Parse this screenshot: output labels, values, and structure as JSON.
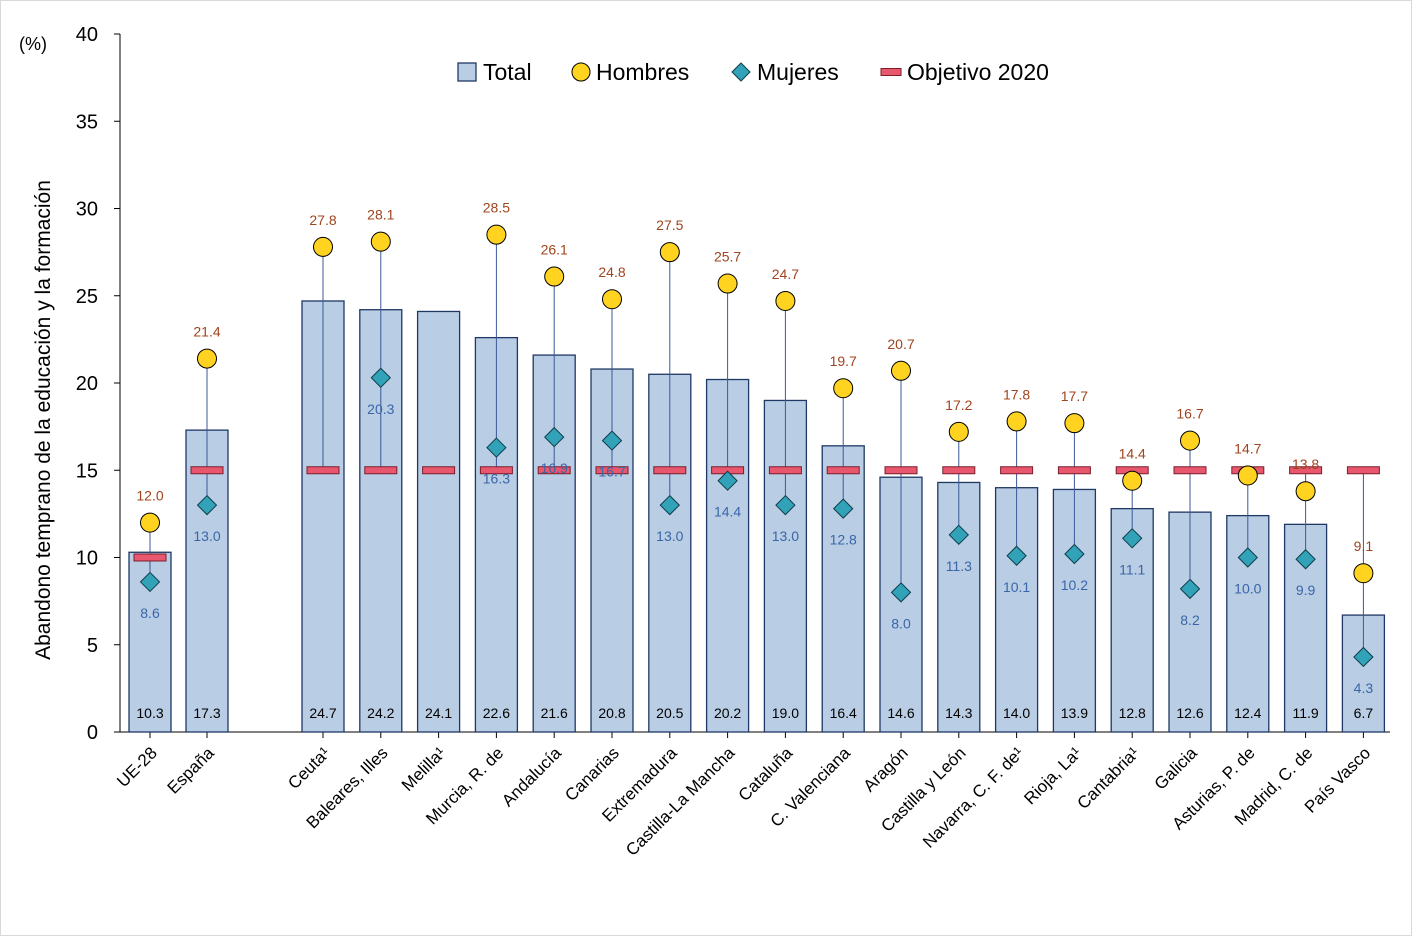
{
  "chart_data": {
    "type": "bar",
    "unit_label": "(%)",
    "ylabel": "Abandono temprano de la educación y la formación",
    "ylim": [
      0,
      40
    ],
    "yticks": [
      0,
      5,
      10,
      15,
      20,
      25,
      30,
      35,
      40
    ],
    "grid": false,
    "legend_position": "top",
    "categories": [
      "UE-28",
      "España",
      "Ceuta¹",
      "Baleares, Illes",
      "Melilla¹",
      "Murcia, R. de",
      "Andalucía",
      "Canarias",
      "Extremadura",
      "Castilla-La Mancha",
      "Cataluña",
      "C. Valenciana",
      "Aragón",
      "Castilla y León",
      "Navarra, C. F. de¹",
      "Rioja, La¹",
      "Cantabria¹",
      "Galicia",
      "Asturias, P. de",
      "Madrid, C. de",
      "País Vasco"
    ],
    "series": [
      {
        "name": "Total",
        "mark": "bar",
        "color": "#b9cde5",
        "values": [
          10.3,
          17.3,
          24.7,
          24.2,
          24.1,
          22.6,
          21.6,
          20.8,
          20.5,
          20.2,
          19.0,
          16.4,
          14.6,
          14.3,
          14.0,
          13.9,
          12.8,
          12.6,
          12.4,
          11.9,
          6.7
        ]
      },
      {
        "name": "Hombres",
        "mark": "circle",
        "color": "#ffd320",
        "values": [
          12.0,
          21.4,
          27.8,
          28.1,
          null,
          28.5,
          26.1,
          24.8,
          27.5,
          25.7,
          24.7,
          19.7,
          20.7,
          17.2,
          17.8,
          17.7,
          14.4,
          16.7,
          14.7,
          13.8,
          9.1
        ]
      },
      {
        "name": "Mujeres",
        "mark": "diamond",
        "color": "#31a2b8",
        "values": [
          8.6,
          13.0,
          null,
          20.3,
          null,
          16.3,
          16.9,
          16.7,
          13.0,
          14.4,
          13.0,
          12.8,
          8.0,
          11.3,
          10.1,
          10.2,
          11.1,
          8.2,
          10.0,
          9.9,
          4.3
        ]
      },
      {
        "name": "Objetivo 2020",
        "mark": "dash",
        "color": "#e8576e",
        "values": [
          10,
          15,
          15,
          15,
          15,
          15,
          15,
          15,
          15,
          15,
          15,
          15,
          15,
          15,
          15,
          15,
          15,
          15,
          15,
          15,
          15
        ]
      }
    ],
    "labels": {
      "total": [
        "10.3",
        "17.3",
        "24.7",
        "24.2",
        "24.1",
        "22.6",
        "21.6",
        "20.8",
        "20.5",
        "20.2",
        "19.0",
        "16.4",
        "14.6",
        "14.3",
        "14.0",
        "13.9",
        "12.8",
        "12.6",
        "12.4",
        "11.9",
        "6.7"
      ],
      "hombres": [
        "12.0",
        "21.4",
        "27.8",
        "28.1",
        "",
        "28.5",
        "26.1",
        "24.8",
        "27.5",
        "25.7",
        "24.7",
        "19.7",
        "20.7",
        "17.2",
        "17.8",
        "17.7",
        "14.4",
        "16.7",
        "14.7",
        "13.8",
        "9.1"
      ],
      "mujeres": [
        "8.6",
        "13.0",
        "",
        "20.3",
        "",
        "16.3",
        "16.9",
        "16.7",
        "13.0",
        "14.4",
        "13.0",
        "12.8",
        "8.0",
        "11.3",
        "10.1",
        "10.2",
        "11.1",
        "8.2",
        "10.0",
        "9.9",
        "4.3"
      ]
    },
    "colors": {
      "bar_fill": "#b9cde5",
      "bar_stroke": "#1f3864",
      "range_line": "#3b5998",
      "hombres_fill": "#ffd320",
      "mujeres_fill": "#31a2b8",
      "objetivo": "#e8576e",
      "men_label": "#a0441e",
      "women_label": "#3a66a8"
    }
  }
}
